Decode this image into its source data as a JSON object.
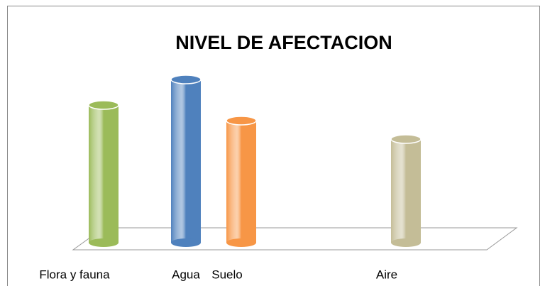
{
  "chart_data": {
    "type": "bar",
    "title": "NIVEL DE AFECTACION",
    "categories": [
      "Flora y fauna",
      "Agua",
      "Suelo",
      "Aire"
    ],
    "values": [
      194,
      230,
      172,
      146
    ],
    "colors": [
      "#9bbb59",
      "#4f81bd",
      "#f79646",
      "#c4bd97"
    ]
  }
}
